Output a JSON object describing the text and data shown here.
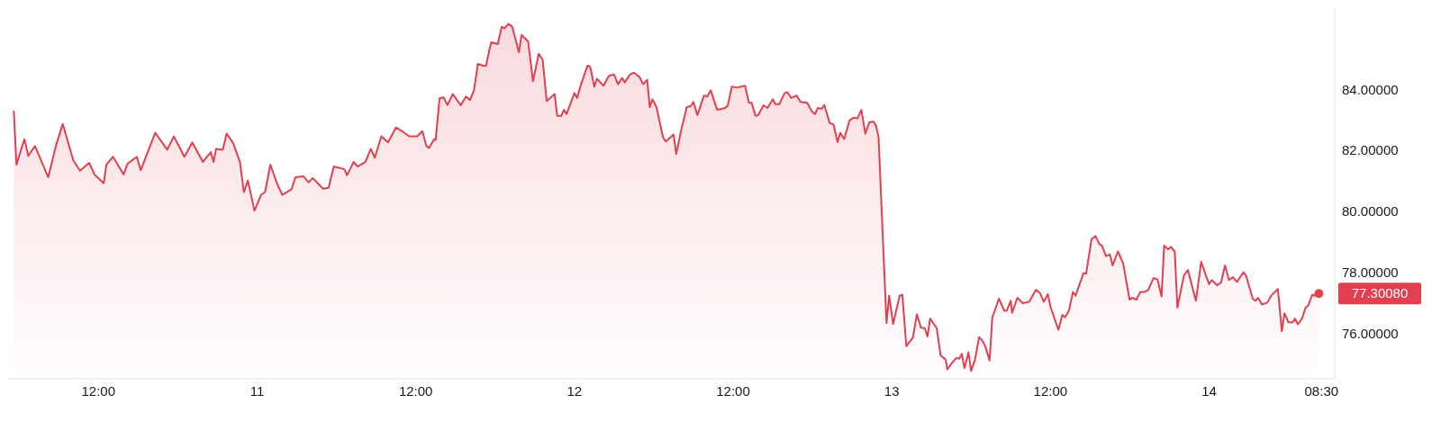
{
  "chart_data": {
    "type": "area",
    "color": "#e0404f",
    "x": [
      "--01-10T05:36",
      "--01-10T05:48",
      "--01-10T06:24",
      "--01-10T06:42",
      "--01-10T07:12",
      "--01-10T08:12",
      "--01-10T08:48",
      "--01-10T09:18",
      "--01-10T10:06",
      "--01-10T10:36",
      "--01-10T11:18",
      "--01-10T11:42",
      "--01-10T12:24",
      "--01-10T12:36",
      "--01-10T13:06",
      "--01-10T13:54",
      "--01-10T14:12",
      "--01-10T14:54",
      "--01-10T15:12",
      "--01-10T16:18",
      "--01-10T17:12",
      "--01-10T17:42",
      "--01-10T18:30",
      "--01-10T19:06",
      "--01-10T19:54",
      "--01-10T20:30",
      "--01-10T20:42",
      "--01-10T20:54",
      "--01-10T21:24",
      "--01-10T21:42",
      "--01-10T22:12",
      "--01-10T22:42",
      "--01-10T23:00",
      "--01-10T23:18",
      "--01-10T23:48",
      "--01-11T00:18",
      "--01-11T00:36",
      "--01-11T01:00",
      "--01-11T01:30",
      "--01-11T01:54",
      "--01-11T02:36",
      "--01-11T02:54",
      "--01-11T03:30",
      "--01-11T03:54",
      "--01-11T04:12",
      "--01-11T05:00",
      "--01-11T05:24",
      "--01-11T05:48",
      "--01-11T06:36",
      "--01-11T06:48",
      "--01-11T07:18",
      "--01-11T07:36",
      "--01-11T08:12",
      "--01-11T08:36",
      "--01-11T08:54",
      "--01-11T09:24",
      "--01-11T09:54",
      "--01-11T10:30",
      "--01-11T10:58",
      "--01-11T11:30",
      "--01-11T12:06",
      "--01-11T12:30",
      "--01-11T12:48",
      "--01-11T13:00",
      "--01-11T13:24",
      "--01-11T13:30",
      "--01-11T13:48",
      "--01-11T14:06",
      "--01-11T14:24",
      "--01-11T14:48",
      "--01-11T15:24",
      "--01-11T15:48",
      "--01-11T16:06",
      "--01-11T16:24",
      "--01-11T16:42",
      "--01-11T17:06",
      "--01-11T17:18",
      "--01-11T17:42",
      "--01-11T18:12",
      "--01-11T18:30",
      "--01-11T18:42",
      "--01-11T19:00",
      "--01-11T19:18",
      "--01-11T19:30",
      "--01-11T19:48",
      "--01-11T20:00",
      "--01-11T20:30",
      "--01-11T20:52",
      "--01-11T21:18",
      "--01-11T21:36",
      "--01-11T21:54",
      "--01-11T22:30",
      "--01-11T22:42",
      "--01-11T23:00",
      "--01-11T23:12",
      "--01-11T23:24",
      "--01-12T00:00",
      "--01-12T00:12",
      "--01-12T00:30",
      "--01-12T01:00",
      "--01-12T01:12",
      "--01-12T01:30",
      "--01-12T01:42",
      "--01-12T02:12",
      "--01-12T02:36",
      "--01-12T03:00",
      "--01-12T03:18",
      "--01-12T03:36",
      "--01-12T03:48",
      "--01-12T04:12",
      "--01-12T04:30",
      "--01-12T04:54",
      "--01-12T05:12",
      "--01-12T05:30",
      "--01-12T05:42",
      "--01-12T05:54",
      "--01-12T06:12",
      "--01-12T06:42",
      "--01-12T06:54",
      "--01-12T07:30",
      "--01-12T07:42",
      "--01-12T08:06",
      "--01-12T08:30",
      "--01-12T08:48",
      "--01-12T09:00",
      "--01-12T09:18",
      "--01-12T09:48",
      "--01-12T10:03",
      "--01-12T10:18",
      "--01-12T10:48",
      "--01-12T11:24",
      "--01-12T11:36",
      "--01-12T11:54",
      "--01-12T12:18",
      "--01-12T12:54",
      "--01-12T13:12",
      "--01-12T13:24",
      "--01-12T13:42",
      "--01-12T13:54",
      "--01-12T14:18",
      "--01-12T14:36",
      "--01-12T15:00",
      "--01-12T15:12",
      "--01-12T15:30",
      "--01-12T15:54",
      "--01-12T16:06",
      "--01-12T16:24",
      "--01-12T16:48",
      "--01-12T17:06",
      "--01-12T17:36",
      "--01-12T17:58",
      "--01-12T18:12",
      "--01-12T18:24",
      "--01-12T18:42",
      "--01-12T18:54",
      "--01-12T19:18",
      "--01-12T19:36",
      "--01-12T19:54",
      "--01-12T20:06",
      "--01-12T20:24",
      "--01-12T20:48",
      "--01-12T21:06",
      "--01-12T21:24",
      "--01-12T21:42",
      "--01-12T22:00",
      "--01-12T22:18",
      "--01-12T22:36",
      "--01-12T22:48",
      "--01-12T23:00",
      "--01-12T23:36",
      "--01-12T23:48",
      "--01-13T00:06",
      "--01-13T00:36",
      "--01-13T00:48",
      "--01-13T01:06",
      "--01-13T01:36",
      "--01-13T01:54",
      "--01-13T02:12",
      "--01-13T02:30",
      "--01-13T02:42",
      "--01-13T02:54",
      "--01-13T03:24",
      "--01-13T03:42",
      "--01-13T04:04",
      "--01-13T04:12",
      "--01-13T04:36",
      "--01-13T04:54",
      "--01-13T05:06",
      "--01-13T05:18",
      "--01-13T05:30",
      "--01-13T05:48",
      "--01-13T06:00",
      "--01-13T06:18",
      "--01-13T06:36",
      "--01-13T06:54",
      "--01-13T07:06",
      "--01-13T07:24",
      "--01-13T07:36",
      "--01-13T08:06",
      "--01-13T08:30",
      "--01-13T08:42",
      "--01-13T09:00",
      "--01-13T09:06",
      "--01-13T09:30",
      "--01-13T09:54",
      "--01-13T10:24",
      "--01-13T10:54",
      "--01-13T11:12",
      "--01-13T11:30",
      "--01-13T11:48",
      "--01-13T12:00",
      "--01-13T12:36",
      "--01-13T12:54",
      "--01-13T13:06",
      "--01-13T13:24",
      "--01-13T13:42",
      "--01-13T13:54",
      "--01-13T14:30",
      "--01-13T14:42",
      "--01-13T15:06",
      "--01-13T15:24",
      "--01-13T15:42",
      "--01-13T15:54",
      "--01-13T16:12",
      "--01-13T16:30",
      "--01-13T16:42",
      "--01-13T17:06",
      "--01-13T17:30",
      "--01-13T17:59",
      "--01-13T18:12",
      "--01-13T18:30",
      "--01-13T18:48",
      "--01-13T19:06",
      "--01-13T19:24",
      "--01-13T19:48",
      "--01-13T20:06",
      "--01-13T20:24",
      "--01-13T20:36",
      "--01-13T20:54",
      "--01-13T21:06",
      "--01-13T21:24",
      "--01-13T21:36",
      "--01-13T22:06",
      "--01-13T22:24",
      "--01-13T23:00",
      "--01-13T23:24",
      "--01-13T23:48",
      "--01-14T00:00",
      "--01-14T00:12",
      "--01-14T00:36",
      "--01-14T00:54",
      "--01-14T01:12",
      "--01-14T01:30",
      "--01-14T01:48",
      "--01-14T02:06",
      "--01-14T02:36",
      "--01-14T02:48",
      "--01-14T03:18",
      "--01-14T03:30",
      "--01-14T03:42",
      "--01-14T04:00",
      "--01-14T04:24",
      "--01-14T04:42",
      "--01-14T05:12",
      "--01-14T05:30",
      "--01-14T05:42",
      "--01-14T06:00",
      "--01-14T06:18",
      "--01-14T06:30",
      "--01-14T06:42",
      "--01-14T07:00",
      "--01-14T07:18",
      "--01-14T07:30",
      "--01-14T07:48",
      "--01-14T08:00",
      "--01-14T08:18"
    ],
    "values": [
      83.3,
      81.53,
      82.37,
      81.82,
      82.14,
      81.12,
      82.17,
      82.87,
      81.67,
      81.33,
      81.59,
      81.21,
      80.92,
      81.53,
      81.79,
      81.21,
      81.56,
      81.79,
      81.35,
      82.58,
      82.02,
      82.46,
      81.79,
      82.26,
      81.62,
      81.94,
      81.62,
      82.05,
      82.02,
      82.55,
      82.23,
      81.62,
      80.63,
      81.01,
      80.02,
      80.54,
      80.63,
      81.53,
      80.92,
      80.54,
      80.72,
      81.12,
      81.15,
      80.95,
      81.09,
      80.74,
      80.77,
      81.47,
      81.38,
      81.18,
      81.62,
      81.47,
      81.62,
      82.05,
      81.76,
      82.46,
      82.26,
      82.75,
      82.63,
      82.46,
      82.46,
      82.63,
      82.14,
      82.08,
      82.37,
      82.34,
      83.71,
      83.74,
      83.49,
      83.85,
      83.48,
      83.77,
      83.65,
      83.97,
      84.84,
      84.78,
      84.77,
      85.55,
      85.49,
      86.06,
      86.0,
      86.15,
      86.06,
      85.72,
      85.22,
      85.79,
      85.57,
      84.27,
      85.17,
      84.97,
      83.62,
      83.85,
      83.13,
      83.13,
      83.33,
      83.19,
      83.88,
      83.72,
      84.17,
      84.79,
      84.73,
      84.09,
      84.35,
      84.12,
      84.45,
      84.49,
      84.17,
      84.38,
      84.23,
      84.49,
      84.55,
      84.42,
      84.17,
      84.32,
      83.42,
      83.68,
      83.42,
      82.43,
      82.29,
      82.52,
      81.88,
      82.72,
      83.42,
      83.45,
      83.59,
      83.16,
      83.8,
      83.77,
      83.97,
      83.33,
      83.39,
      83.48,
      84.09,
      84.06,
      84.12,
      83.56,
      83.56,
      83.13,
      83.16,
      83.48,
      83.39,
      83.68,
      83.52,
      83.52,
      83.88,
      83.91,
      83.72,
      83.8,
      83.59,
      83.56,
      83.27,
      83.19,
      83.39,
      83.36,
      83.49,
      82.9,
      82.85,
      82.27,
      82.58,
      82.37,
      82.98,
      83.07,
      83.05,
      83.33,
      82.55,
      82.92,
      82.95,
      82.82,
      82.43,
      76.33,
      77.23,
      76.3,
      77.23,
      77.26,
      75.57,
      75.86,
      76.62,
      76.18,
      76.16,
      75.89,
      76.48,
      76.16,
      75.26,
      75.14,
      74.81,
      75.05,
      75.19,
      75.16,
      75.32,
      74.85,
      75.37,
      74.76,
      75.14,
      75.87,
      75.72,
      75.53,
      75.1,
      76.5,
      77.13,
      76.74,
      76.74,
      77.06,
      76.67,
      77.16,
      76.98,
      77.03,
      77.42,
      77.32,
      77.03,
      77.28,
      76.87,
      76.11,
      76.6,
      76.52,
      76.74,
      77.35,
      77.23,
      77.97,
      77.95,
      79.07,
      79.19,
      78.92,
      78.87,
      78.53,
      78.58,
      78.22,
      78.68,
      78.29,
      77.1,
      77.16,
      77.1,
      77.35,
      77.35,
      77.42,
      77.81,
      77.76,
      77.2,
      78.87,
      78.75,
      78.83,
      78.68,
      76.84,
      77.9,
      78.07,
      77.06,
      78.34,
      77.84,
      77.61,
      77.74,
      77.57,
      77.66,
      78.22,
      77.74,
      77.84,
      77.68,
      78.0,
      77.88,
      77.13,
      77.06,
      77.16,
      76.94,
      77.0,
      77.23,
      77.45,
      76.06,
      76.65,
      76.35,
      76.35,
      76.48,
      76.29,
      76.45,
      76.84,
      76.91,
      77.26,
      77.23,
      77.3
    ],
    "xlim": [
      "--01-10T05:06",
      "--01-14T09:30"
    ],
    "xticks": [
      {
        "value": "--01-10T12:00",
        "label": "12:00"
      },
      {
        "value": "--01-11",
        "label": "11"
      },
      {
        "value": "--01-11T12:00",
        "label": "12:00"
      },
      {
        "value": "--01-12",
        "label": "12"
      },
      {
        "value": "--01-12T12:00",
        "label": "12:00"
      },
      {
        "value": "--01-13",
        "label": "13"
      },
      {
        "value": "--01-13T12:00",
        "label": "12:00"
      },
      {
        "value": "--01-14",
        "label": "14"
      },
      {
        "value": "--01-14T08:30",
        "label": "08:30"
      }
    ],
    "ylim": [
      74.5,
      86.7
    ],
    "yticks": [
      {
        "value": 76,
        "label": "76.00000"
      },
      {
        "value": 78,
        "label": "78.00000"
      },
      {
        "value": 80,
        "label": "80.00000"
      },
      {
        "value": 82,
        "label": "82.00000"
      },
      {
        "value": 84,
        "label": "84.00000"
      }
    ],
    "annotations": [
      {
        "text": "77.30080",
        "x": "--01-14T08:18",
        "y": 77.3
      }
    ]
  }
}
